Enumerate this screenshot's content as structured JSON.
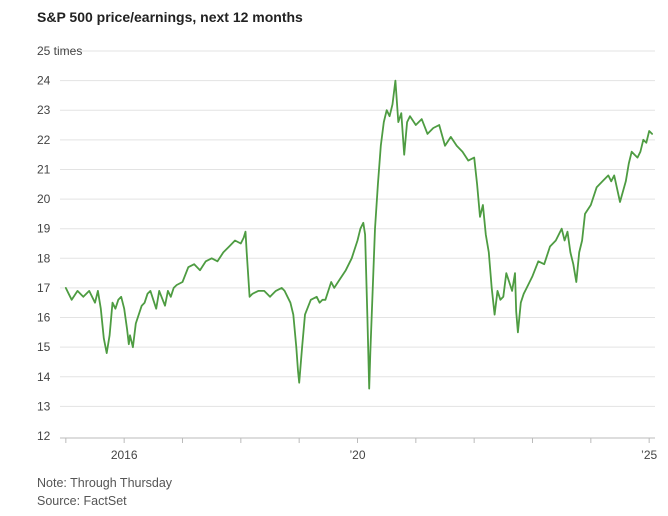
{
  "title": "S&P 500 price/earnings, next 12 months",
  "notes": {
    "note": "Note: Through Thursday",
    "source": "Source: FactSet"
  },
  "chart_data": {
    "type": "line",
    "title": "S&P 500 price/earnings, next 12 months",
    "xlabel": "",
    "ylabel": "",
    "line_color": "#4e9c42",
    "grid_color": "#e3e3e3",
    "axis_color": "#bbbbbb",
    "grid": true,
    "ylim": [
      12,
      25
    ],
    "xlim": [
      2014.9,
      2025.1
    ],
    "y_ticks": [
      12,
      13,
      14,
      15,
      16,
      17,
      18,
      19,
      20,
      21,
      22,
      23,
      24,
      25
    ],
    "y_tick_labels": [
      "12",
      "13",
      "14",
      "15",
      "16",
      "17",
      "18",
      "19",
      "20",
      "21",
      "22",
      "23",
      "24",
      "25 times"
    ],
    "x_ticks": [
      2015,
      2016,
      2017,
      2018,
      2019,
      2020,
      2021,
      2022,
      2023,
      2024,
      2025
    ],
    "x_tick_labels": [
      {
        "x": 2016,
        "label": "2016"
      },
      {
        "x": 2020,
        "label": "’20"
      },
      {
        "x": 2025,
        "label": "’25"
      }
    ],
    "series": [
      {
        "x": [
          2015.0,
          2015.05,
          2015.1,
          2015.2,
          2015.3,
          2015.4,
          2015.5,
          2015.55,
          2015.6,
          2015.62,
          2015.65,
          2015.7,
          2015.75,
          2015.8,
          2015.85,
          2015.9,
          2015.95,
          2016.0,
          2016.05,
          2016.08,
          2016.1,
          2016.15,
          2016.2,
          2016.3,
          2016.35,
          2016.4,
          2016.45,
          2016.5,
          2016.55,
          2016.6,
          2016.7,
          2016.75,
          2016.8,
          2016.85,
          2016.9,
          2017.0,
          2017.1,
          2017.2,
          2017.3,
          2017.4,
          2017.5,
          2017.6,
          2017.7,
          2017.8,
          2017.9,
          2018.0,
          2018.05,
          2018.08,
          2018.1,
          2018.15,
          2018.2,
          2018.3,
          2018.4,
          2018.5,
          2018.6,
          2018.7,
          2018.75,
          2018.8,
          2018.85,
          2018.9,
          2018.95,
          2018.98,
          2019.0,
          2019.05,
          2019.1,
          2019.2,
          2019.3,
          2019.35,
          2019.4,
          2019.45,
          2019.5,
          2019.55,
          2019.6,
          2019.7,
          2019.8,
          2019.9,
          2020.0,
          2020.05,
          2020.1,
          2020.13,
          2020.17,
          2020.2,
          2020.22,
          2020.3,
          2020.35,
          2020.4,
          2020.45,
          2020.5,
          2020.55,
          2020.6,
          2020.65,
          2020.7,
          2020.75,
          2020.8,
          2020.85,
          2020.9,
          2021.0,
          2021.1,
          2021.2,
          2021.3,
          2021.4,
          2021.5,
          2021.6,
          2021.7,
          2021.8,
          2021.9,
          2022.0,
          2022.05,
          2022.1,
          2022.15,
          2022.2,
          2022.25,
          2022.3,
          2022.35,
          2022.4,
          2022.45,
          2022.5,
          2022.55,
          2022.6,
          2022.65,
          2022.7,
          2022.72,
          2022.75,
          2022.8,
          2022.85,
          2022.9,
          2023.0,
          2023.1,
          2023.2,
          2023.3,
          2023.4,
          2023.5,
          2023.55,
          2023.6,
          2023.65,
          2023.7,
          2023.75,
          2023.8,
          2023.85,
          2023.9,
          2024.0,
          2024.1,
          2024.2,
          2024.3,
          2024.35,
          2024.4,
          2024.5,
          2024.6,
          2024.65,
          2024.7,
          2024.75,
          2024.8,
          2024.85,
          2024.9,
          2024.95,
          2025.0,
          2025.05
        ],
        "y": [
          17.0,
          16.8,
          16.6,
          16.9,
          16.7,
          16.9,
          16.5,
          16.9,
          16.3,
          15.9,
          15.3,
          14.8,
          15.4,
          16.5,
          16.3,
          16.6,
          16.7,
          16.3,
          15.6,
          15.1,
          15.4,
          15.0,
          15.8,
          16.4,
          16.5,
          16.8,
          16.9,
          16.6,
          16.3,
          16.9,
          16.4,
          16.9,
          16.7,
          17.0,
          17.1,
          17.2,
          17.7,
          17.8,
          17.6,
          17.9,
          18.0,
          17.9,
          18.2,
          18.4,
          18.6,
          18.5,
          18.7,
          18.9,
          18.2,
          16.7,
          16.8,
          16.9,
          16.9,
          16.7,
          16.9,
          17.0,
          16.9,
          16.7,
          16.5,
          16.1,
          15.0,
          14.2,
          13.8,
          15.0,
          16.1,
          16.6,
          16.7,
          16.5,
          16.6,
          16.6,
          16.9,
          17.2,
          17.0,
          17.3,
          17.6,
          18.0,
          18.6,
          19.0,
          19.2,
          18.8,
          16.0,
          13.6,
          14.8,
          19.0,
          20.5,
          21.8,
          22.6,
          23.0,
          22.8,
          23.2,
          24.0,
          22.6,
          22.9,
          21.5,
          22.6,
          22.8,
          22.5,
          22.7,
          22.2,
          22.4,
          22.5,
          21.8,
          22.1,
          21.8,
          21.6,
          21.3,
          21.4,
          20.5,
          19.4,
          19.8,
          18.8,
          18.2,
          17.0,
          16.1,
          16.9,
          16.6,
          16.7,
          17.5,
          17.2,
          16.9,
          17.5,
          16.2,
          15.5,
          16.5,
          16.8,
          17.0,
          17.4,
          17.9,
          17.8,
          18.4,
          18.6,
          19.0,
          18.6,
          18.9,
          18.2,
          17.8,
          17.2,
          18.2,
          18.6,
          19.5,
          19.8,
          20.4,
          20.6,
          20.8,
          20.6,
          20.8,
          19.9,
          20.6,
          21.2,
          21.6,
          21.5,
          21.4,
          21.6,
          22.0,
          21.9,
          22.3,
          22.2
        ]
      }
    ]
  }
}
